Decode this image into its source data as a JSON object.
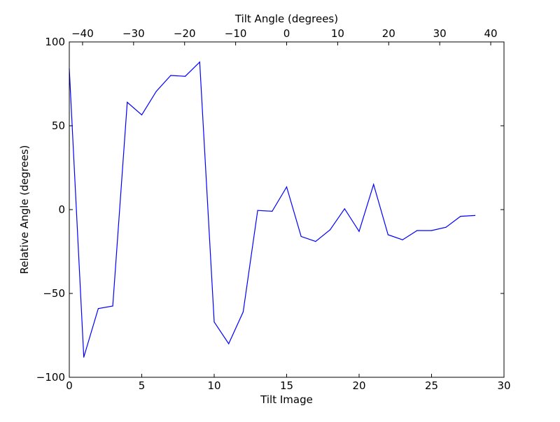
{
  "chart_data": {
    "type": "line",
    "title": "",
    "xlabel": "Tilt Image",
    "ylabel": "Relative Angle (degrees)",
    "top_xlabel": "Tilt Angle (degrees)",
    "xlim": [
      0,
      30
    ],
    "ylim": [
      -100,
      100
    ],
    "top_xlim": [
      -42.6,
      42.6
    ],
    "grid": false,
    "xticks": [
      0,
      5,
      10,
      15,
      20,
      25,
      30
    ],
    "xtick_labels": [
      "0",
      "5",
      "10",
      "15",
      "20",
      "25",
      "30"
    ],
    "yticks": [
      -100,
      -50,
      0,
      50,
      100
    ],
    "ytick_labels": [
      "−100",
      "−50",
      "0",
      "50",
      "100"
    ],
    "top_xticks": [
      -40,
      -30,
      -20,
      -10,
      0,
      10,
      20,
      30,
      40
    ],
    "top_xtick_labels": [
      "−40",
      "−30",
      "−20",
      "−10",
      "0",
      "10",
      "20",
      "30",
      "40"
    ],
    "series": [
      {
        "color": "#0000ff",
        "x": [
          0,
          1,
          2,
          3,
          4,
          5,
          6,
          7,
          8,
          9,
          10,
          11,
          12,
          13,
          14,
          15,
          16,
          17,
          18,
          19,
          20,
          21,
          22,
          23,
          24,
          25,
          26,
          27,
          28
        ],
        "y": [
          84,
          -88,
          -59,
          -57.5,
          64,
          56.5,
          70.5,
          80,
          79.5,
          88,
          -67,
          -80,
          -61,
          -0.5,
          -1,
          13.5,
          -16,
          -19,
          -12,
          0.5,
          -13,
          15,
          -15,
          -18,
          -12.5,
          -12.5,
          -10.5,
          -4,
          -3.5
        ]
      }
    ]
  }
}
